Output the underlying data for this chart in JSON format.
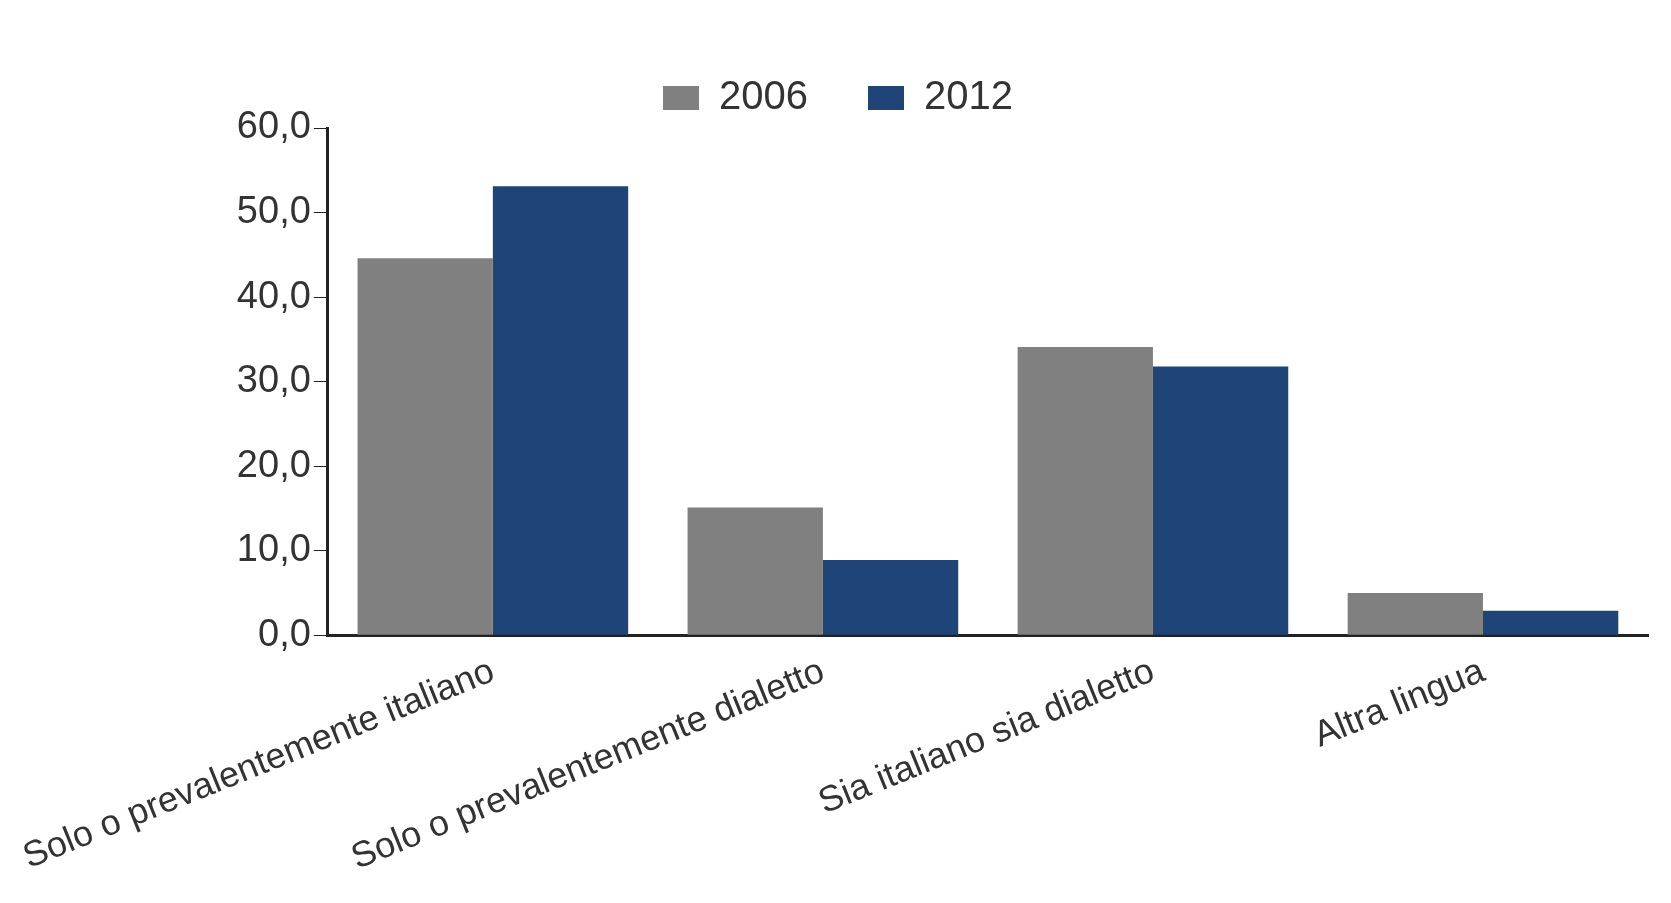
{
  "chart_data": {
    "type": "bar",
    "categories": [
      "Solo o prevalentemente italiano",
      "Solo o prevalentemente dialetto",
      "Sia italiano sia dialetto",
      "Altra lingua"
    ],
    "series": [
      {
        "name": "2006",
        "color": "#808080",
        "values": [
          44.6,
          15.1,
          34.1,
          5.0
        ]
      },
      {
        "name": "2012",
        "color": "#1f4478",
        "values": [
          53.1,
          8.9,
          31.8,
          2.9
        ]
      }
    ],
    "ylim": [
      0,
      60
    ],
    "yticks": [
      {
        "value": 0,
        "label": "0,0"
      },
      {
        "value": 10,
        "label": "10,0"
      },
      {
        "value": 20,
        "label": "20,0"
      },
      {
        "value": 30,
        "label": "30,0"
      },
      {
        "value": 40,
        "label": "40,0"
      },
      {
        "value": 50,
        "label": "50,0"
      },
      {
        "value": 60,
        "label": "60,0"
      }
    ],
    "grid": false,
    "legend": "top"
  }
}
